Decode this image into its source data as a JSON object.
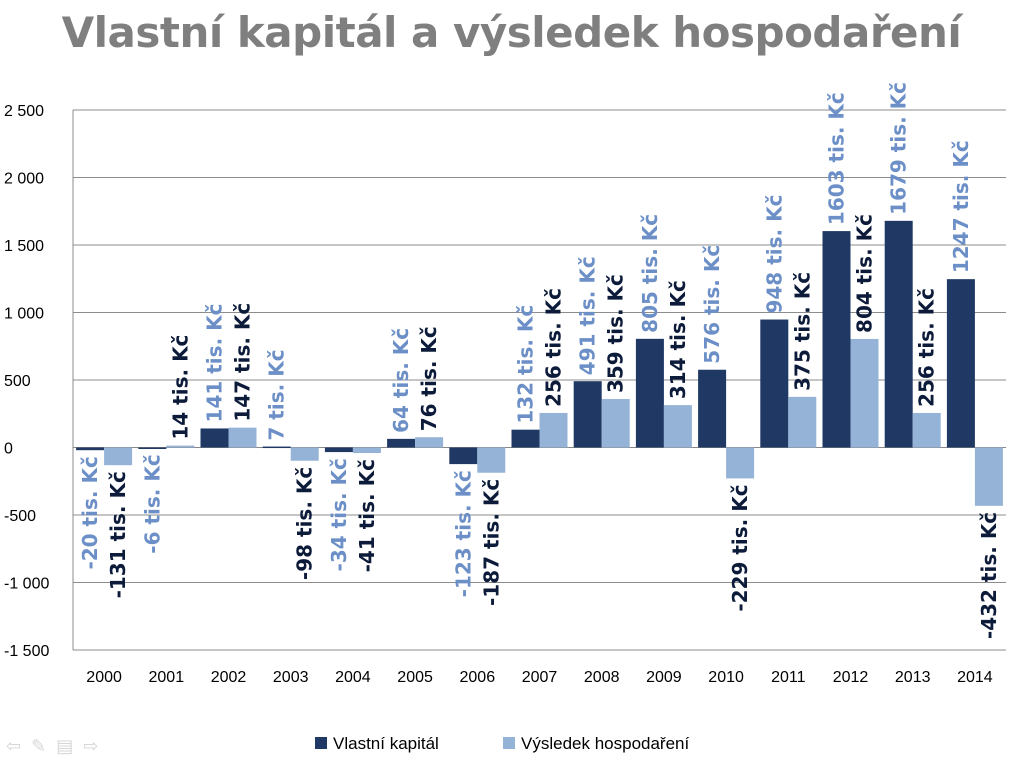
{
  "chart_data": {
    "type": "bar",
    "title": "Vlastní kapitál a výsledek hospodaření",
    "categories": [
      "2000",
      "2001",
      "2002",
      "2003",
      "2004",
      "2005",
      "2006",
      "2007",
      "2008",
      "2009",
      "2010",
      "2011",
      "2012",
      "2013",
      "2014"
    ],
    "series": [
      {
        "name": "Vlastní kapitál",
        "color": "#1f3864",
        "values": [
          -20,
          -6,
          141,
          7,
          -34,
          64,
          -123,
          132,
          491,
          805,
          576,
          948,
          1603,
          1679,
          1247
        ],
        "labels": [
          "-20 tis. Kč",
          "-6 tis. Kč",
          "141 tis. Kč",
          "7 tis. Kč",
          "-34 tis. Kč",
          "64 tis. Kč",
          "-123 tis. Kč",
          "132 tis. Kč",
          "491 tis. Kč",
          "805 tis. Kč",
          "576 tis. Kč",
          "948 tis. Kč",
          "1603 tis. Kč",
          "1679 tis. Kč",
          "1247 tis. Kč"
        ],
        "label_color": "#6b8fc6"
      },
      {
        "name": "Výsledek hospodaření",
        "color": "#95b3d7",
        "values": [
          -131,
          14,
          147,
          -98,
          -41,
          76,
          -187,
          256,
          359,
          314,
          -229,
          375,
          804,
          256,
          -432
        ],
        "labels": [
          "-131 tis. Kč",
          "14 tis. Kč",
          "147 tis. Kč",
          "-98 tis. Kč",
          "-41 tis. Kč",
          "76 tis. Kč",
          "-187 tis. Kč",
          "256 tis. Kč",
          "359 tis. Kč",
          "314 tis. Kč",
          "-229 tis. Kč",
          "375 tis. Kč",
          "804 tis. Kč",
          "256 tis. Kč",
          "-432 tis. Kč"
        ],
        "label_color": "#0d1b3a"
      }
    ],
    "ylim": [
      -1500,
      2500
    ],
    "yticks": [
      2500,
      2000,
      1500,
      1000,
      500,
      0,
      -500,
      -1000,
      -1500
    ],
    "ytick_labels": [
      "2 500",
      "2 000",
      "1 500",
      "1 000",
      "500",
      "0",
      "-500",
      "-1 000",
      "-1 500"
    ],
    "grid": true,
    "legend_position": "bottom"
  },
  "nav": {
    "prev_icon": "arrow-left-icon",
    "pen_icon": "pen-icon",
    "menu_icon": "menu-icon",
    "next_icon": "arrow-right-icon"
  }
}
